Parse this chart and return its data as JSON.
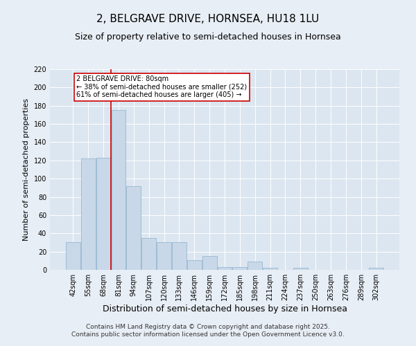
{
  "title": "2, BELGRAVE DRIVE, HORNSEA, HU18 1LU",
  "subtitle": "Size of property relative to semi-detached houses in Hornsea",
  "xlabel": "Distribution of semi-detached houses by size in Hornsea",
  "ylabel": "Number of semi-detached properties",
  "categories": [
    "42sqm",
    "55sqm",
    "68sqm",
    "81sqm",
    "94sqm",
    "107sqm",
    "120sqm",
    "133sqm",
    "146sqm",
    "159sqm",
    "172sqm",
    "185sqm",
    "198sqm",
    "211sqm",
    "224sqm",
    "237sqm",
    "250sqm",
    "263sqm",
    "276sqm",
    "289sqm",
    "302sqm"
  ],
  "values": [
    30,
    122,
    123,
    175,
    92,
    35,
    30,
    30,
    11,
    15,
    3,
    3,
    9,
    2,
    0,
    2,
    0,
    0,
    0,
    0,
    2
  ],
  "bar_color": "#c8d8e8",
  "bar_edge_color": "#8ab0cc",
  "vline_index": 3,
  "annotation_title": "2 BELGRAVE DRIVE: 80sqm",
  "annotation_line1": "← 38% of semi-detached houses are smaller (252)",
  "annotation_line2": "61% of semi-detached houses are larger (405) →",
  "annotation_box_facecolor": "#ffffff",
  "annotation_box_edgecolor": "#cc0000",
  "vline_color": "#cc0000",
  "ylim": [
    0,
    220
  ],
  "yticks": [
    0,
    20,
    40,
    60,
    80,
    100,
    120,
    140,
    160,
    180,
    200,
    220
  ],
  "plot_bg_color": "#dce6f0",
  "fig_bg_color": "#e8eef5",
  "title_fontsize": 11,
  "subtitle_fontsize": 9,
  "tick_fontsize": 7,
  "xlabel_fontsize": 9,
  "ylabel_fontsize": 8,
  "footer_fontsize": 6.5,
  "footer_line1": "Contains HM Land Registry data © Crown copyright and database right 2025.",
  "footer_line2": "Contains public sector information licensed under the Open Government Licence v3.0."
}
